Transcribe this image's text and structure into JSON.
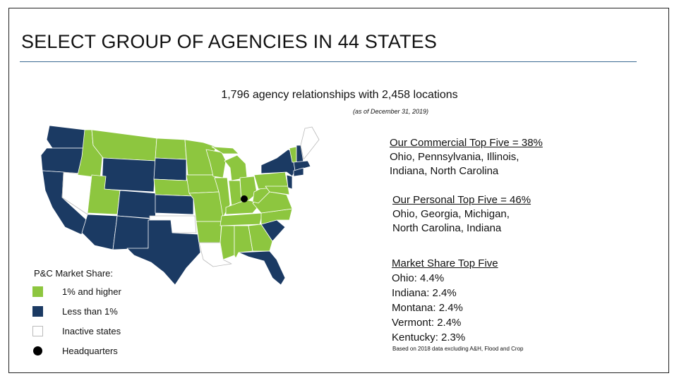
{
  "slide": {
    "title": "SELECT GROUP OF AGENCIES IN 44 STATES",
    "headline": "1,796 agency relationships with 2,458 locations",
    "as_of": "(as of December 31, 2019)"
  },
  "legend": {
    "title": "P&C Market Share:",
    "items": [
      {
        "label": "1% and higher",
        "color": "#8dc63f"
      },
      {
        "label": "Less than 1%",
        "color": "#1b3a63"
      },
      {
        "label": "Inactive states",
        "color": "#ffffff"
      },
      {
        "label": "Headquarters",
        "color": "#000000"
      }
    ]
  },
  "commercial": {
    "heading": "Our Commercial Top Five = 38%",
    "line1": "Ohio, Pennsylvania, Illinois,",
    "line2": "Indiana, North Carolina"
  },
  "personal": {
    "heading": "Our Personal Top Five = 46%",
    "line1": "Ohio, Georgia, Michigan,",
    "line2": "North Carolina, Indiana"
  },
  "market_share": {
    "heading": "Market Share Top Five",
    "items": [
      "Ohio: 4.4%",
      "Indiana: 2.4%",
      "Montana: 2.4%",
      "Vermont: 2.4%",
      "Kentucky: 2.3%"
    ],
    "footnote": "Based on 2018 data excluding A&H, Flood and Crop"
  },
  "map_colors": {
    "active_high": "#8dc63f",
    "active_low": "#1b3a63",
    "inactive": "#ffffff",
    "headquarters": "#000000"
  }
}
